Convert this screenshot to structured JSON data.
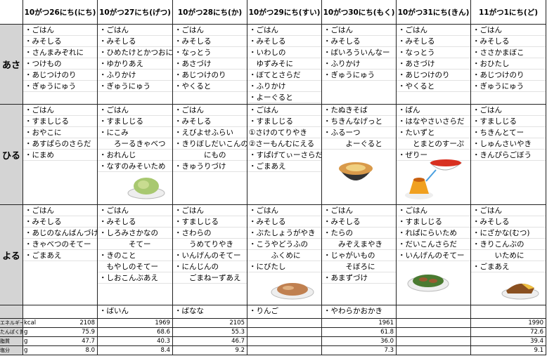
{
  "header": {
    "days": [
      "10がつ26にち(にち)",
      "10がつ27にち(げつ)",
      "10がつ28にち(か)",
      "10がつ29にち(すい)",
      "10がつ30にち(もく)",
      "10がつ31にち(きん)",
      "11がつ1にち(ど)"
    ]
  },
  "meals": [
    {
      "label": "あさ",
      "days": [
        [
          "・ごはん",
          "・みそしる",
          "・さんまみぞれに",
          "・つけもの",
          "・あじつけのり",
          "・ぎゅうにゅう"
        ],
        [
          "・ごはん",
          "・みそしる",
          "・ひめたけとかつおに",
          "・ゆかりあえ",
          "・ふりかけ",
          "・ぎゅうにゅう"
        ],
        [
          "・ごはん",
          "・みそしる",
          "・なっとう",
          "・あさづけ",
          "・あじつけのり",
          "・やくると"
        ],
        [
          "・ごはん",
          "・みそしる",
          "・いわしの",
          "　ゆずみそに",
          "・ぼてとさらだ",
          "・ふりかけ",
          "・よーぐると"
        ],
        [
          "・ごはん",
          "・みそしる",
          "・ばいろういんなー",
          "・ふりかけ",
          "・ぎゅうにゅう"
        ],
        [
          "・ごはん",
          "・みそしる",
          "・なっとう",
          "・あさづけ",
          "・あじつけのり",
          "・やくると"
        ],
        [
          "・ごはん",
          "・みそしる",
          "・ささかまぼこ",
          "・おひたし",
          "・あじつけのり",
          "・ぎゅうにゅう"
        ]
      ]
    },
    {
      "label": "ひる",
      "days": [
        [
          "・ごはん",
          "・すましじる",
          "・おやこに",
          "・あすぱらのさらだ",
          "・にまめ"
        ],
        [
          "・ごはん",
          "・すましじる",
          "・にこみ",
          "　　ろーるきゃべつ",
          "・おれんじ",
          "・なすのみそいため"
        ],
        [
          "・ごはん",
          "・みそしる",
          "・えびよせふらい",
          "・きりぼしだいこんの",
          "　　　　にもの",
          "・きゅうりづけ"
        ],
        [
          "・ごはん",
          "・すましじる",
          "①さけのてりやき",
          "②さーもんむにえる",
          "・すぱげてぃーさらだ",
          "・ごまあえ"
        ],
        [
          "・たぬきそば",
          "・ちきんなげっと",
          "・ふるーつ",
          "　　　よーぐると"
        ],
        [
          "・ぱん",
          "・はなやさいさらだ",
          "・たいずと",
          "　　とまとのすーぷ",
          "・ぜりー"
        ],
        [
          "・ごはん",
          "・すましじる",
          "・ちきんとてー",
          "・しゅんさいやき",
          "・きんぴらごぼう"
        ]
      ]
    },
    {
      "label": "よる",
      "days": [
        [
          "・ごはん",
          "・みそしる",
          "・あじのなんばんづけ",
          "・きゃべつのそてー",
          "・ごまあえ"
        ],
        [
          "・ごはん",
          "・みそしる",
          "・しろみさかなの",
          "　　　　そてー",
          "・きのこと",
          "　もやしのそてー",
          "・しおこんぶあえ"
        ],
        [
          "・ごはん",
          "・すましじる",
          "・さわらの",
          "　　うめてりやき",
          "・いんげんのそてー",
          "・にんじんの",
          "　　ごまねーずあえ"
        ],
        [
          "・ごはん",
          "・みそしる",
          "・ぶたしょうがやき",
          "・こうやどうふの",
          "　　　ふくめに",
          "・にびたし"
        ],
        [
          "・ごはん",
          "・みそしる",
          "・たらの",
          "　　みぞえまやき",
          "・じゃがいもの",
          "　　　そぼろに",
          "・あまずづけ"
        ],
        [
          "・ごはん",
          "・すましじる",
          "・れぱにらいため",
          "・だいこんさらだ",
          "・いんげんのそてー"
        ],
        [
          "・ごはん",
          "・みそしる",
          "・にざかな(むつ)",
          "・きりこんぶの",
          "　　　いために",
          "・ごまあえ"
        ]
      ]
    }
  ],
  "extra": [
    null,
    "・ばいん",
    "・ばなな",
    "・りんご",
    "・やわらかおかき",
    null,
    null
  ],
  "nutrition": {
    "labels": [
      "エネルギー",
      "たんぱく質",
      "脂質",
      "塩分"
    ],
    "units": [
      "kcal",
      "g",
      "g",
      "g"
    ],
    "values": [
      [
        "2108",
        "1969",
        "2105",
        null,
        "1961",
        null,
        "1990"
      ],
      [
        "75.9",
        "68.6",
        "55.3",
        null,
        "61.8",
        null,
        "72.6"
      ],
      [
        "47.7",
        "40.3",
        "46.7",
        null,
        "36.0",
        null,
        "39.4"
      ],
      [
        "8.0",
        "8.4",
        "9.2",
        null,
        "7.3",
        null,
        "9.1"
      ]
    ]
  }
}
